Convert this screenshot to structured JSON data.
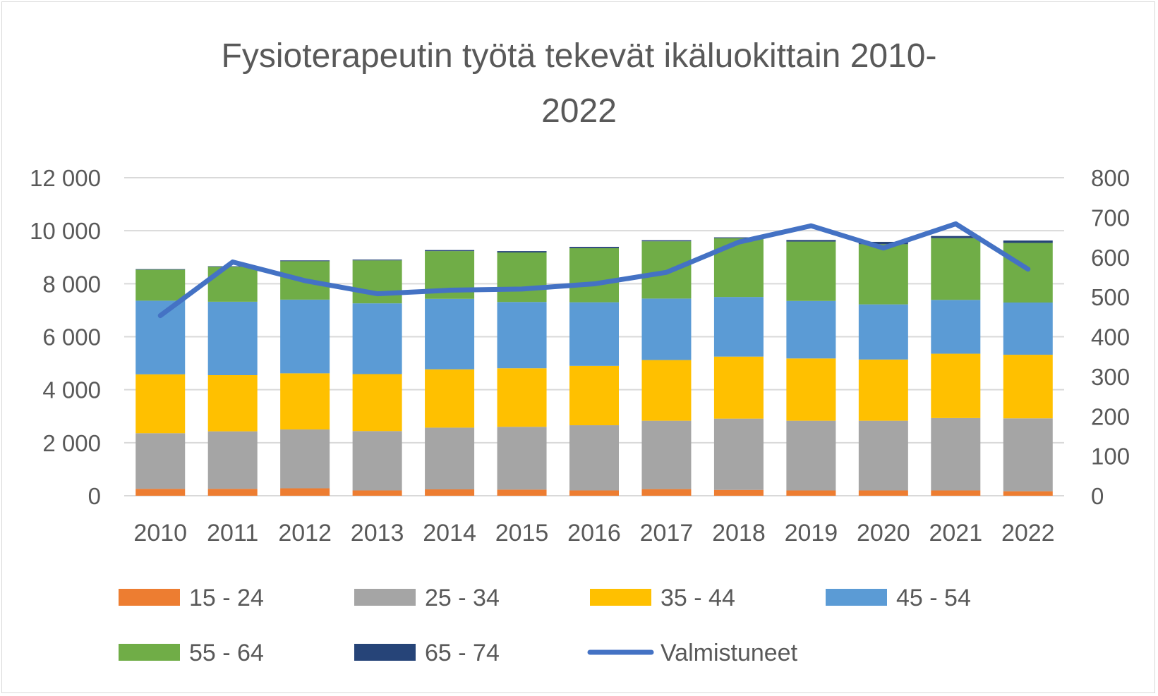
{
  "chart_data": {
    "type": "bar",
    "title_lines": [
      "Fysioterapeutin työtä tekevät ikäluokittain 2010-",
      "2022"
    ],
    "categories": [
      "2010",
      "2011",
      "2012",
      "2013",
      "2014",
      "2015",
      "2016",
      "2017",
      "2018",
      "2019",
      "2020",
      "2021",
      "2022"
    ],
    "stacked": true,
    "series": [
      {
        "name": "15 - 24",
        "color": "#ED7D31",
        "values": [
          260,
          260,
          280,
          200,
          240,
          230,
          200,
          250,
          220,
          200,
          200,
          200,
          170
        ]
      },
      {
        "name": "25 - 34",
        "color": "#A5A5A5",
        "values": [
          2100,
          2170,
          2220,
          2240,
          2330,
          2370,
          2460,
          2580,
          2690,
          2630,
          2630,
          2730,
          2750
        ]
      },
      {
        "name": "35 - 44",
        "color": "#FFC000",
        "values": [
          2220,
          2120,
          2120,
          2150,
          2200,
          2210,
          2240,
          2290,
          2340,
          2350,
          2310,
          2430,
          2400
        ]
      },
      {
        "name": "45 - 54",
        "color": "#5B9BD5",
        "values": [
          2780,
          2770,
          2780,
          2670,
          2660,
          2500,
          2400,
          2320,
          2250,
          2170,
          2080,
          2030,
          1970
        ]
      },
      {
        "name": "55 - 64",
        "color": "#70AD47",
        "values": [
          1170,
          1320,
          1450,
          1620,
          1800,
          1870,
          2040,
          2160,
          2220,
          2240,
          2270,
          2330,
          2250
        ]
      },
      {
        "name": "65 - 74",
        "color": "#264478",
        "values": [
          20,
          20,
          30,
          30,
          40,
          50,
          50,
          40,
          30,
          60,
          90,
          80,
          90
        ]
      }
    ],
    "line_series": {
      "name": "Valmistuneet",
      "color": "#4472C4",
      "axis": "secondary",
      "values": [
        453,
        588,
        541,
        508,
        517,
        520,
        533,
        562,
        638,
        679,
        623,
        684,
        570
      ]
    },
    "y_axis": {
      "min": 0,
      "max": 12000,
      "ticks": [
        "0",
        "2 000",
        "4 000",
        "6 000",
        "8 000",
        "10 000",
        "12 000"
      ],
      "tick_values": [
        0,
        2000,
        4000,
        6000,
        8000,
        10000,
        12000
      ]
    },
    "y2_axis": {
      "min": 0,
      "max": 800,
      "ticks": [
        "0",
        "100",
        "200",
        "300",
        "400",
        "500",
        "600",
        "700",
        "800"
      ],
      "tick_values": [
        0,
        100,
        200,
        300,
        400,
        500,
        600,
        700,
        800
      ]
    },
    "grid": true,
    "legend_position": "bottom"
  }
}
